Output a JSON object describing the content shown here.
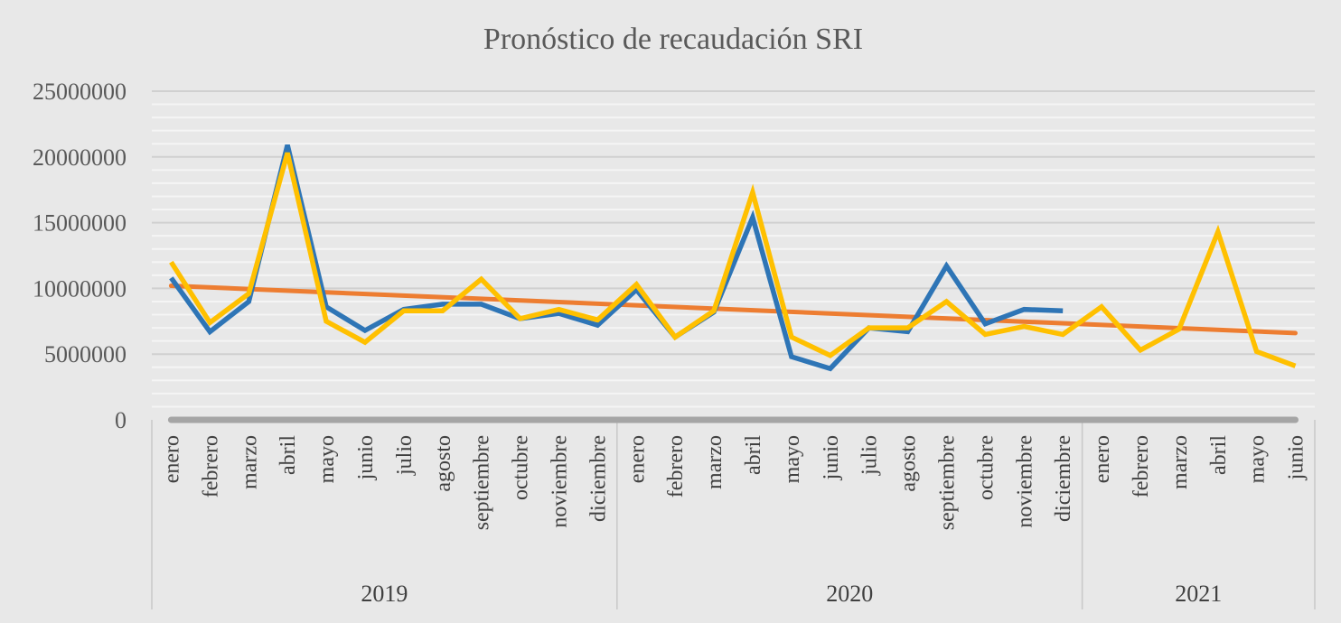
{
  "chart_data": {
    "type": "line",
    "title": "Pronóstico de recaudación SRI",
    "ylim": [
      0,
      25000000
    ],
    "yticks": [
      "0",
      "5000000",
      "10000000",
      "15000000",
      "20000000",
      "25000000"
    ],
    "ytick_values": [
      0,
      5000000,
      10000000,
      15000000,
      20000000,
      25000000
    ],
    "grid": true,
    "legend": "none",
    "groups": [
      {
        "label": "2019",
        "categories": [
          "enero",
          "febrero",
          "marzo",
          "abril",
          "mayo",
          "junio",
          "julio",
          "agosto",
          "septiembre",
          "octubre",
          "noviembre",
          "diciembre"
        ]
      },
      {
        "label": "2020",
        "categories": [
          "enero",
          "febrero",
          "marzo",
          "abril",
          "mayo",
          "junio",
          "julio",
          "agosto",
          "septiembre",
          "octubre",
          "noviembre",
          "diciembre"
        ]
      },
      {
        "label": "2021",
        "categories": [
          "enero",
          "febrero",
          "marzo",
          "abril",
          "mayo",
          "junio"
        ]
      }
    ],
    "series": [
      {
        "color": "#2e75b6",
        "values": [
          10800000,
          6700000,
          9000000,
          20900000,
          8600000,
          6800000,
          8400000,
          8800000,
          8800000,
          7700000,
          8100000,
          7200000,
          9900000,
          6300000,
          8200000,
          15400000,
          4800000,
          3900000,
          7000000,
          6700000,
          11700000,
          7300000,
          8400000,
          8300000,
          null,
          null,
          null,
          null,
          null,
          null
        ]
      },
      {
        "color": "#ffc000",
        "values": [
          12000000,
          7400000,
          9600000,
          20300000,
          7500000,
          5900000,
          8300000,
          8300000,
          10700000,
          7700000,
          8400000,
          7600000,
          10300000,
          6300000,
          8300000,
          17300000,
          6300000,
          4900000,
          7000000,
          7000000,
          9000000,
          6500000,
          7100000,
          6500000,
          8600000,
          5300000,
          6900000,
          14300000,
          5200000,
          4100000
        ]
      },
      {
        "color": "#ed7d31",
        "values": [
          10200000,
          null,
          null,
          null,
          null,
          null,
          null,
          null,
          null,
          null,
          null,
          null,
          null,
          null,
          null,
          null,
          null,
          null,
          null,
          null,
          null,
          null,
          null,
          null,
          null,
          null,
          null,
          null,
          null,
          6600000
        ]
      },
      {
        "color": "#a5a5a5",
        "values": [
          0,
          null,
          null,
          null,
          null,
          null,
          null,
          null,
          null,
          null,
          null,
          null,
          null,
          null,
          null,
          null,
          null,
          null,
          null,
          null,
          null,
          null,
          null,
          null,
          null,
          null,
          null,
          null,
          null,
          0
        ]
      }
    ]
  }
}
